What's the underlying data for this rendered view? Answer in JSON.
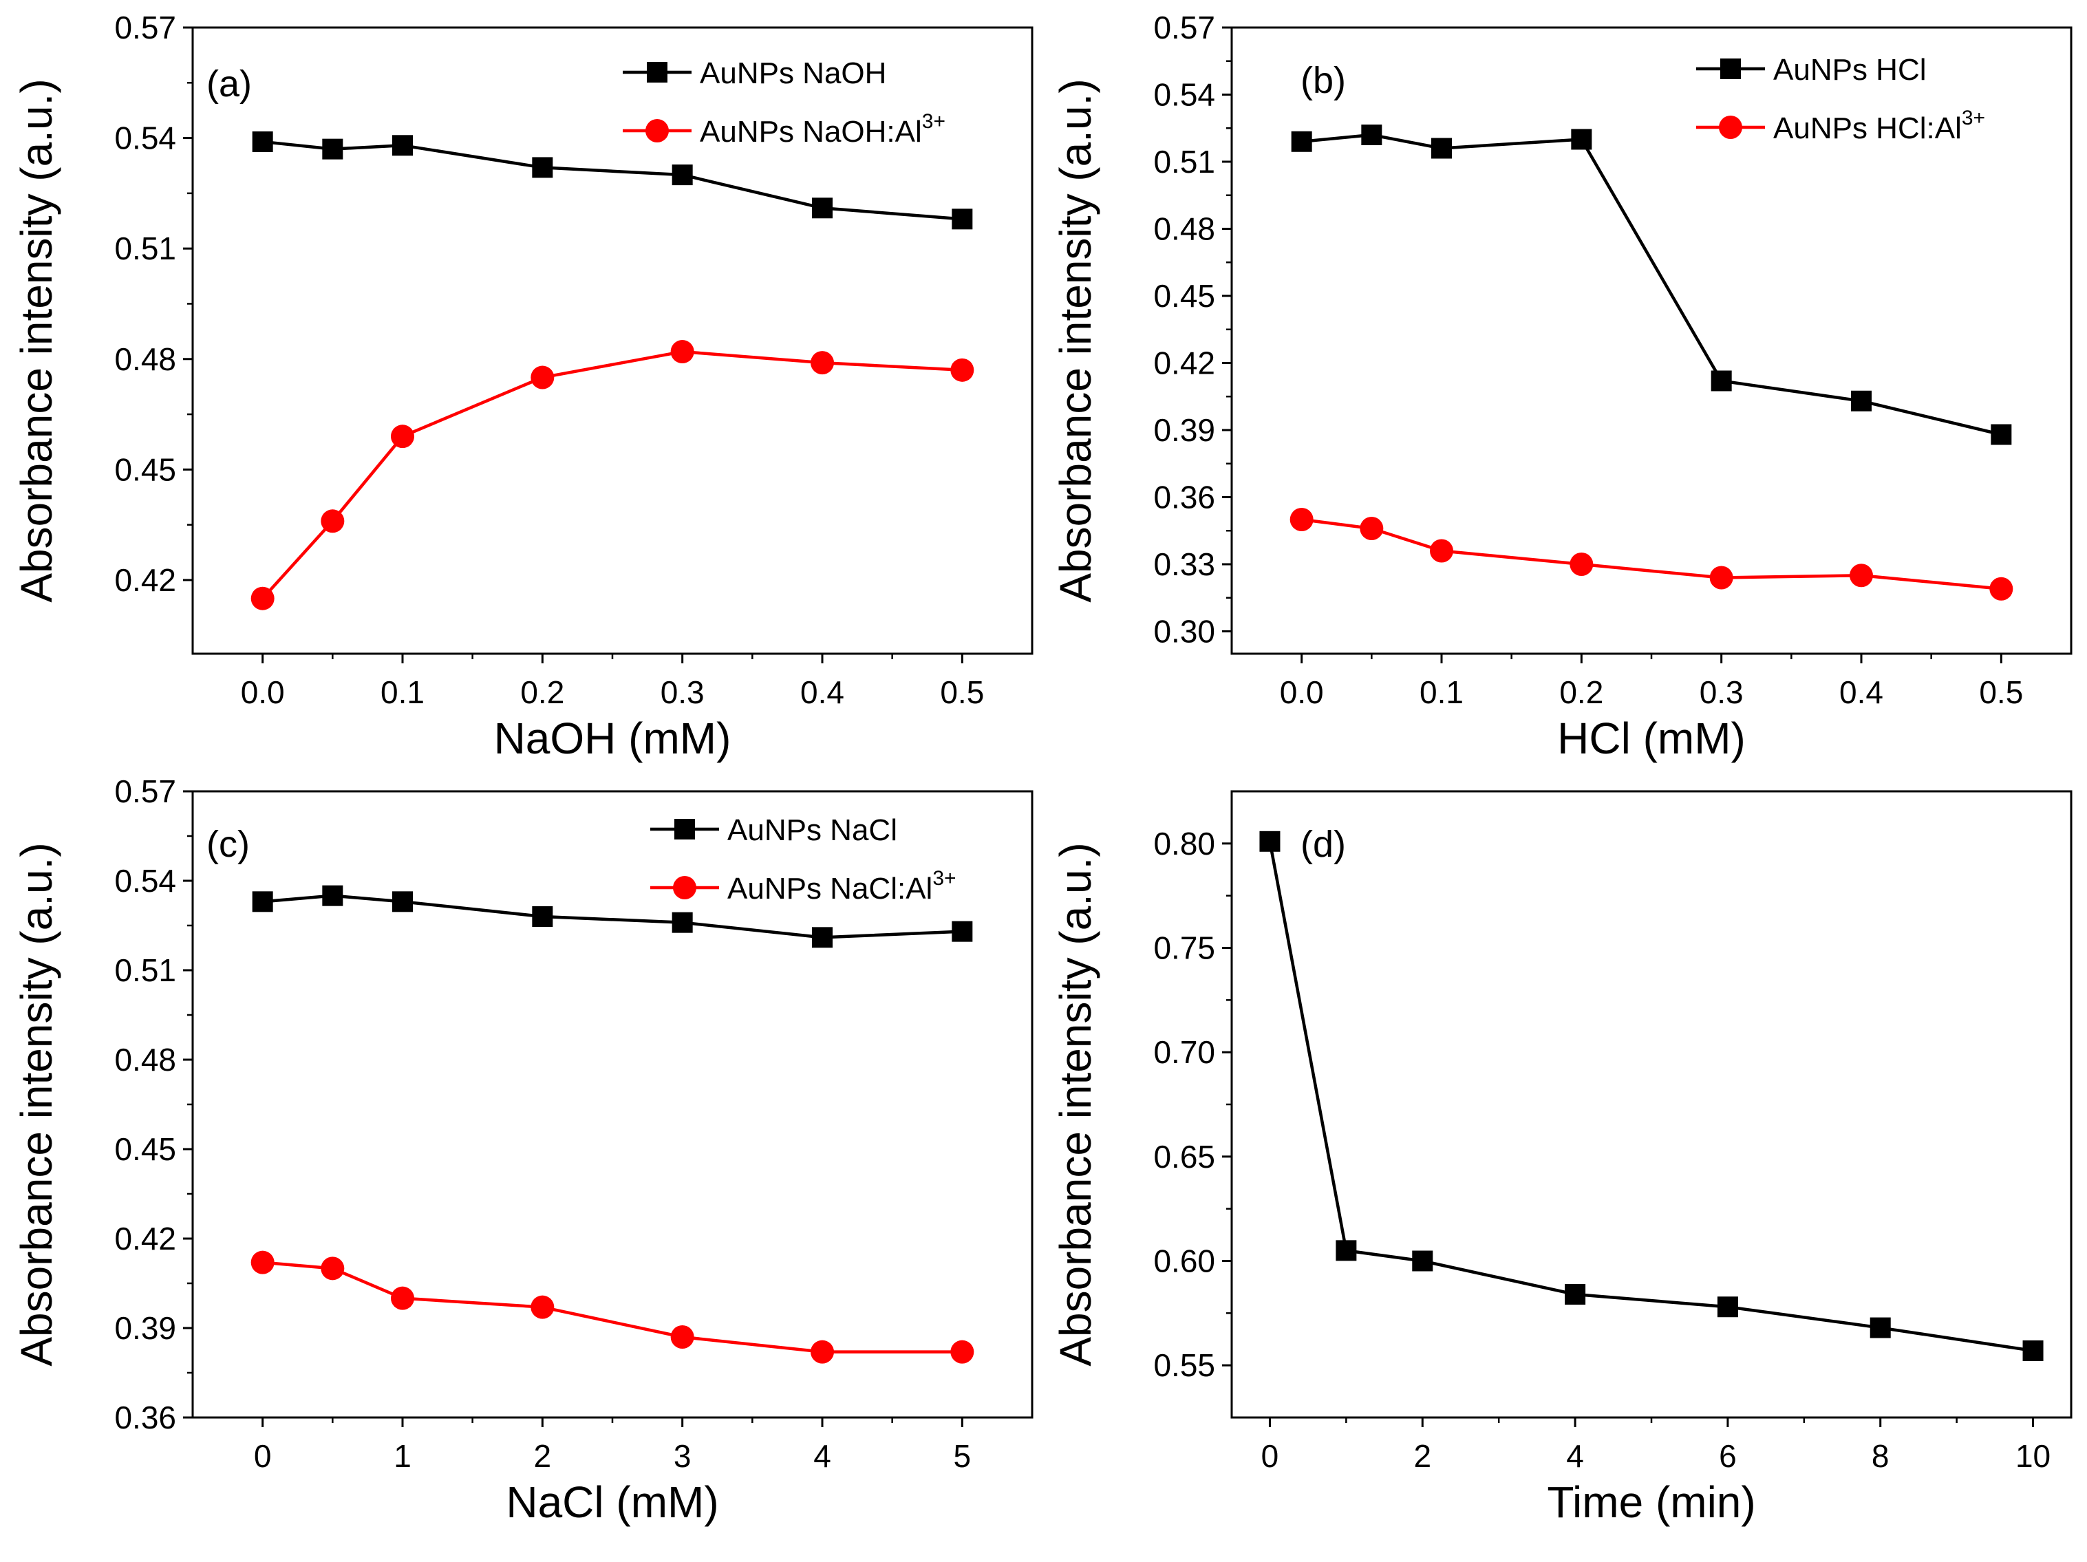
{
  "chart_data": [
    {
      "panel": "(a)",
      "type": "line",
      "xlabel": "NaOH (mM)",
      "ylabel": "Absorbance intensity (a.u.)",
      "xlim": [
        -0.05,
        0.55
      ],
      "ylim": [
        0.4,
        0.57
      ],
      "xticks": [
        "0.0",
        "0.1",
        "0.2",
        "0.3",
        "0.4",
        "0.5"
      ],
      "xtick_values": [
        0.0,
        0.1,
        0.2,
        0.3,
        0.4,
        0.5
      ],
      "yticks": [
        "0.42",
        "0.45",
        "0.48",
        "0.51",
        "0.54",
        "0.57"
      ],
      "ytick_values": [
        0.42,
        0.45,
        0.48,
        0.51,
        0.54,
        0.57
      ],
      "legend_position": "top-right",
      "series": [
        {
          "name": "AuNPs NaOH",
          "sup": "",
          "marker": "square",
          "color": "#000000",
          "x": [
            0,
            0.05,
            0.1,
            0.2,
            0.3,
            0.4,
            0.5
          ],
          "values": [
            0.539,
            0.537,
            0.538,
            0.532,
            0.53,
            0.521,
            0.518
          ]
        },
        {
          "name": "AuNPs NaOH:Al",
          "sup": "3+",
          "marker": "circle",
          "color": "#ff0000",
          "x": [
            0,
            0.05,
            0.1,
            0.2,
            0.3,
            0.4,
            0.5
          ],
          "values": [
            0.415,
            0.436,
            0.459,
            0.475,
            0.482,
            0.479,
            0.477
          ]
        }
      ]
    },
    {
      "panel": "(b)",
      "type": "line",
      "xlabel": "HCl (mM)",
      "ylabel": "Absorbance intensity (a.u.)",
      "xlim": [
        -0.05,
        0.55
      ],
      "ylim": [
        0.29,
        0.57
      ],
      "xticks": [
        "0.0",
        "0.1",
        "0.2",
        "0.3",
        "0.4",
        "0.5"
      ],
      "xtick_values": [
        0.0,
        0.1,
        0.2,
        0.3,
        0.4,
        0.5
      ],
      "yticks": [
        "0.30",
        "0.33",
        "0.36",
        "0.39",
        "0.42",
        "0.45",
        "0.48",
        "0.51",
        "0.54",
        "0.57"
      ],
      "ytick_values": [
        0.3,
        0.33,
        0.36,
        0.39,
        0.42,
        0.45,
        0.48,
        0.51,
        0.54,
        0.57
      ],
      "legend_position": "top-right",
      "series": [
        {
          "name": "AuNPs HCl",
          "sup": "",
          "marker": "square",
          "color": "#000000",
          "x": [
            0,
            0.05,
            0.1,
            0.2,
            0.3,
            0.4,
            0.5
          ],
          "values": [
            0.519,
            0.522,
            0.516,
            0.52,
            0.412,
            0.403,
            0.388
          ]
        },
        {
          "name": "AuNPs HCl:Al",
          "sup": "3+",
          "marker": "circle",
          "color": "#ff0000",
          "x": [
            0,
            0.05,
            0.1,
            0.2,
            0.3,
            0.4,
            0.5
          ],
          "values": [
            0.35,
            0.346,
            0.336,
            0.33,
            0.324,
            0.325,
            0.319
          ]
        }
      ]
    },
    {
      "panel": "(c)",
      "type": "line",
      "xlabel": "NaCl (mM)",
      "ylabel": "Absorbance intensity (a.u.)",
      "xlim": [
        -0.5,
        5.5
      ],
      "ylim": [
        0.36,
        0.57
      ],
      "xticks": [
        "0",
        "1",
        "2",
        "3",
        "4",
        "5"
      ],
      "xtick_values": [
        0,
        1,
        2,
        3,
        4,
        5
      ],
      "yticks": [
        "0.36",
        "0.39",
        "0.42",
        "0.45",
        "0.48",
        "0.51",
        "0.54",
        "0.57"
      ],
      "ytick_values": [
        0.36,
        0.39,
        0.42,
        0.45,
        0.48,
        0.51,
        0.54,
        0.57
      ],
      "legend_position": "top-right",
      "series": [
        {
          "name": "AuNPs NaCl",
          "sup": "",
          "marker": "square",
          "color": "#000000",
          "x": [
            0,
            0.5,
            1,
            2,
            3,
            4,
            5
          ],
          "values": [
            0.533,
            0.535,
            0.533,
            0.528,
            0.526,
            0.521,
            0.523
          ]
        },
        {
          "name": "AuNPs NaCl:Al",
          "sup": "3+",
          "marker": "circle",
          "color": "#ff0000",
          "x": [
            0,
            0.5,
            1,
            2,
            3,
            4,
            5
          ],
          "values": [
            0.412,
            0.41,
            0.4,
            0.397,
            0.387,
            0.382,
            0.382
          ]
        }
      ]
    },
    {
      "panel": "(d)",
      "type": "line",
      "xlabel": "Time (min)",
      "ylabel": "Absorbance intensity (a.u.)",
      "xlim": [
        -0.5,
        10.5
      ],
      "ylim": [
        0.525,
        0.825
      ],
      "xticks": [
        "0",
        "2",
        "4",
        "6",
        "8",
        "10"
      ],
      "xtick_values": [
        0,
        2,
        4,
        6,
        8,
        10
      ],
      "yticks": [
        "0.55",
        "0.60",
        "0.65",
        "0.70",
        "0.75",
        "0.80"
      ],
      "ytick_values": [
        0.55,
        0.6,
        0.65,
        0.7,
        0.75,
        0.8
      ],
      "legend_position": "none",
      "series": [
        {
          "name": "",
          "sup": "",
          "marker": "square",
          "color": "#000000",
          "x": [
            0,
            1,
            2,
            4,
            6,
            8,
            10
          ],
          "values": [
            0.801,
            0.605,
            0.6,
            0.584,
            0.578,
            0.568,
            0.557
          ]
        }
      ]
    }
  ]
}
